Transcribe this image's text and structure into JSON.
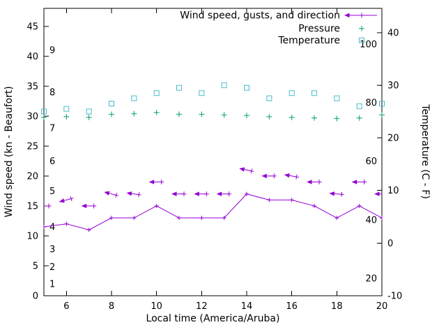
{
  "chart_data": {
    "type": "line",
    "title": "",
    "xlabel": "Local time (America/Aruba)",
    "ylabel_left": "Wind speed (kn - Beaufort)",
    "ylabel_right": "Temperature (C - F)",
    "grid": false,
    "legend_position": "top-right-inside",
    "x_range": [
      5,
      20
    ],
    "x_ticks": [
      6,
      8,
      10,
      12,
      14,
      16,
      18,
      20
    ],
    "y_left_range": [
      0,
      48
    ],
    "y_left_ticks": [
      0,
      5,
      10,
      15,
      20,
      25,
      30,
      35,
      40,
      45
    ],
    "y_right_range": [
      -10,
      44.6
    ],
    "y_right_ticks": [
      -10,
      0,
      10,
      20,
      30,
      40
    ],
    "beaufort_scale_labels": [
      {
        "label": "1",
        "kn": 2
      },
      {
        "label": "2",
        "kn": 4.8
      },
      {
        "label": "3",
        "kn": 7.8
      },
      {
        "label": "4",
        "kn": 11.5
      },
      {
        "label": "5",
        "kn": 17.5
      },
      {
        "label": "6",
        "kn": 22.5
      },
      {
        "label": "7",
        "kn": 28
      },
      {
        "label": "8",
        "kn": 34
      },
      {
        "label": "9",
        "kn": 41
      }
    ],
    "fahrenheit_scale_labels": [
      {
        "label": "20",
        "c": -6.7
      },
      {
        "label": "40",
        "c": 4.4
      },
      {
        "label": "60",
        "c": 15.6
      },
      {
        "label": "80",
        "c": 26.7
      },
      {
        "label": "100",
        "c": 37.8
      }
    ],
    "hours": [
      5,
      6,
      7,
      8,
      9,
      10,
      11,
      12,
      13,
      14,
      15,
      16,
      17,
      18,
      19,
      20
    ],
    "series": [
      {
        "name": "Wind speed, gusts, and direction",
        "axis": "left",
        "color": "#9400d3",
        "marker": "plus",
        "style": "line-with-direction-arrows",
        "wind_speed_kn": [
          11.5,
          12,
          11,
          13,
          13,
          15,
          13,
          13,
          13,
          17,
          16,
          16,
          15,
          13,
          15,
          13
        ],
        "gust_kn": [
          15,
          16,
          15,
          17,
          17,
          19,
          17,
          17,
          17,
          21,
          20,
          20,
          19,
          17,
          19,
          17
        ],
        "gust_arrow_tilt_deg": [
          0,
          -15,
          0,
          15,
          8,
          0,
          0,
          0,
          0,
          12,
          0,
          10,
          0,
          5,
          0,
          0
        ]
      },
      {
        "name": "Pressure",
        "axis": "left",
        "color": "#009e73",
        "marker": "plus",
        "style": "points",
        "values": [
          29.8,
          29.9,
          29.8,
          30.3,
          30.4,
          30.6,
          30.3,
          30.3,
          30.2,
          30.1,
          29.9,
          29.8,
          29.7,
          29.6,
          29.7,
          30.2
        ]
      },
      {
        "name": "Temperature",
        "axis": "right",
        "color": "#48bcc8",
        "marker": "open-square",
        "style": "points",
        "values_c": [
          25,
          25.5,
          25,
          26.5,
          27.5,
          28.5,
          29.5,
          28.5,
          30,
          29.5,
          27.5,
          28.5,
          28.5,
          27.5,
          26,
          26.5
        ]
      }
    ]
  }
}
